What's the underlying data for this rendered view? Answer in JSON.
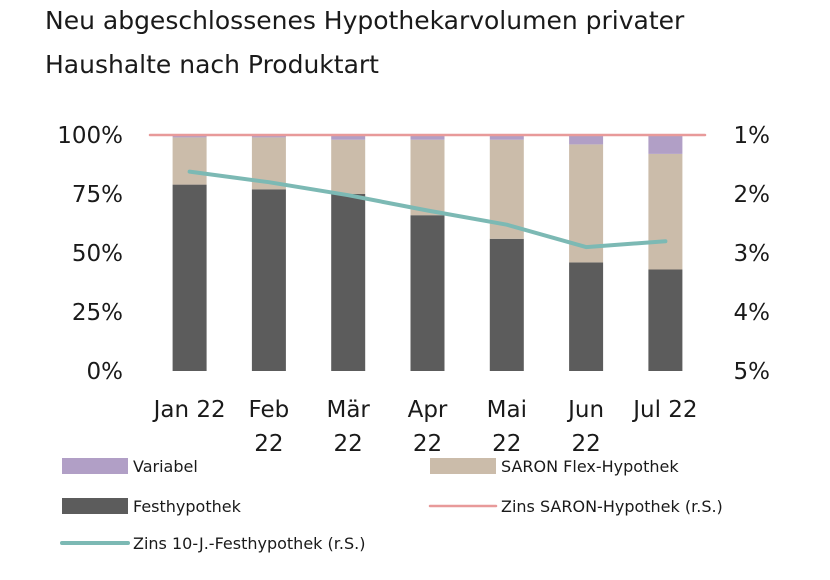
{
  "title": [
    "Neu abgeschlossenes Hypothekarvolumen privater",
    "Haushalte nach Produktart"
  ],
  "chart_data": {
    "type": "bar",
    "stacked": true,
    "categories": [
      [
        "Jan 22"
      ],
      [
        "Feb",
        "22"
      ],
      [
        "Mär",
        "22"
      ],
      [
        "Apr",
        "22"
      ],
      [
        "Mai",
        "22"
      ],
      [
        "Jun",
        "22"
      ],
      [
        "Jul 22"
      ]
    ],
    "y_left": {
      "ticks": [
        "0%",
        "25%",
        "50%",
        "75%",
        "100%"
      ],
      "range": [
        0,
        100
      ]
    },
    "y_right": {
      "ticks": [
        "1%",
        "2%",
        "3%",
        "4%",
        "5%"
      ],
      "range": [
        1,
        5
      ],
      "inverted": true
    },
    "series": [
      {
        "name": "Festhypothek",
        "kind": "bar",
        "axis": "left",
        "color": "#5c5c5c",
        "values": [
          79,
          77,
          75,
          66,
          56,
          46,
          43
        ]
      },
      {
        "name": "SARON Flex-Hypothek",
        "kind": "bar",
        "axis": "left",
        "color": "#cbbcaa",
        "values": [
          20,
          22,
          23,
          32,
          42,
          50,
          49
        ]
      },
      {
        "name": "Variabel",
        "kind": "bar",
        "axis": "left",
        "color": "#b19fc6",
        "values": [
          1,
          1,
          2,
          2,
          2,
          4,
          8
        ]
      },
      {
        "name": "Zins SARON-Hypothek (r.S.)",
        "kind": "line",
        "axis": "right",
        "color": "#e89a9a",
        "values": [
          1.0,
          1.0,
          1.0,
          1.0,
          1.0,
          1.0,
          1.0
        ]
      },
      {
        "name": "Zins 10-J.-Festhypothek (r.S.)",
        "kind": "line",
        "axis": "right",
        "color": "#7cb9b4",
        "values": [
          1.62,
          1.8,
          2.02,
          2.28,
          2.52,
          2.9,
          2.8
        ]
      }
    ],
    "legend_order": [
      "Variabel",
      "SARON Flex-Hypothek",
      "Festhypothek",
      "Zins SARON-Hypothek (r.S.)",
      "Zins 10-J.-Festhypothek (r.S.)"
    ],
    "legend_position": "bottom",
    "grid": false
  }
}
